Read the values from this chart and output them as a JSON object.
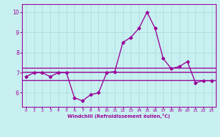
{
  "x": [
    0,
    1,
    2,
    3,
    4,
    5,
    6,
    7,
    8,
    9,
    10,
    11,
    12,
    13,
    14,
    15,
    16,
    17,
    18,
    19,
    20,
    21,
    22,
    23
  ],
  "y_main": [
    6.8,
    7.0,
    7.0,
    6.8,
    7.0,
    7.0,
    5.75,
    5.6,
    5.9,
    6.0,
    7.0,
    7.05,
    8.5,
    8.75,
    9.2,
    10.0,
    9.2,
    7.7,
    7.2,
    7.3,
    7.55,
    6.5,
    6.6,
    6.6
  ],
  "y_line1": 7.25,
  "y_line2": 7.05,
  "y_line3": 6.62,
  "color_main": "#990099",
  "color_lines": "#990099",
  "bg_color": "#c8f0f0",
  "grid_color": "#aadddd",
  "text_color": "#990099",
  "xlabel": "Windchill (Refroidissement éolien,°C)",
  "ylim": [
    5.3,
    10.4
  ],
  "xlim": [
    -0.5,
    23.5
  ],
  "yticks": [
    6,
    7,
    8,
    9,
    10
  ],
  "xticks": [
    0,
    1,
    2,
    3,
    4,
    5,
    6,
    7,
    8,
    9,
    10,
    11,
    12,
    13,
    14,
    15,
    16,
    17,
    18,
    19,
    20,
    21,
    22,
    23
  ],
  "marker": "D",
  "marker_size": 2.2,
  "line_width": 1.0
}
